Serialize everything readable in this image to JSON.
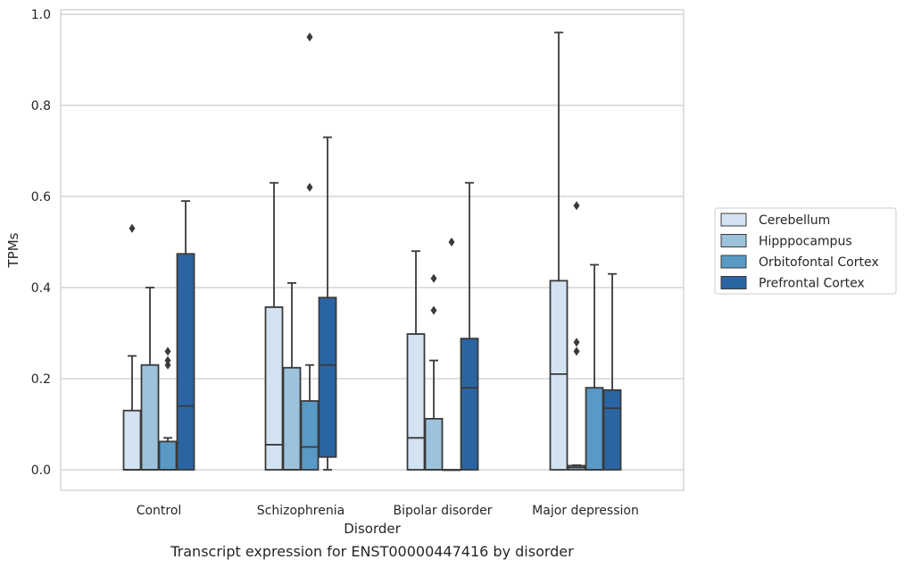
{
  "chart_data": {
    "type": "box",
    "xlabel": "Disorder",
    "ylabel": "TPMs",
    "caption": "Transcript expression for ENST00000447416 by disorder",
    "ylim": [
      -0.045,
      1.01
    ],
    "yticks": [
      0.0,
      0.2,
      0.4,
      0.6,
      0.8,
      1.0
    ],
    "ytick_labels": [
      "0.0",
      "0.2",
      "0.4",
      "0.6",
      "0.8",
      "1.0"
    ],
    "grid": true,
    "legend_position": "right",
    "categories": [
      "Control",
      "Schizophrenia",
      "Bipolar disorder",
      "Major depression"
    ],
    "series": [
      {
        "name": "Cerebellum",
        "color": "#d3e3f1",
        "boxes": [
          {
            "q1": 0.0,
            "median": 0.0,
            "q3": 0.13,
            "whisker_low": 0.0,
            "whisker_high": 0.25,
            "outliers": [
              0.53
            ]
          },
          {
            "q1": 0.0,
            "median": 0.055,
            "q3": 0.357,
            "whisker_low": 0.0,
            "whisker_high": 0.63,
            "outliers": []
          },
          {
            "q1": 0.0,
            "median": 0.07,
            "q3": 0.298,
            "whisker_low": 0.0,
            "whisker_high": 0.48,
            "outliers": []
          },
          {
            "q1": 0.0,
            "median": 0.21,
            "q3": 0.415,
            "whisker_low": 0.0,
            "whisker_high": 0.96,
            "outliers": []
          }
        ]
      },
      {
        "name": "Hipppocampus",
        "color": "#9dc3dc",
        "boxes": [
          {
            "q1": 0.0,
            "median": 0.0,
            "q3": 0.23,
            "whisker_low": 0.0,
            "whisker_high": 0.4,
            "outliers": []
          },
          {
            "q1": 0.0,
            "median": 0.0,
            "q3": 0.224,
            "whisker_low": 0.0,
            "whisker_high": 0.41,
            "outliers": []
          },
          {
            "q1": 0.0,
            "median": 0.0,
            "q3": 0.112,
            "whisker_low": 0.0,
            "whisker_high": 0.24,
            "outliers": [
              0.35,
              0.42
            ]
          },
          {
            "q1": 0.0,
            "median": 0.005,
            "q3": 0.009,
            "whisker_low": 0.0,
            "whisker_high": 0.01,
            "outliers": [
              0.26,
              0.28,
              0.58
            ]
          }
        ]
      },
      {
        "name": "Orbitofontal Cortex",
        "color": "#5899c6",
        "boxes": [
          {
            "q1": 0.0,
            "median": 0.0,
            "q3": 0.062,
            "whisker_low": 0.0,
            "whisker_high": 0.07,
            "outliers": [
              0.23,
              0.24,
              0.26
            ]
          },
          {
            "q1": 0.0,
            "median": 0.05,
            "q3": 0.151,
            "whisker_low": 0.0,
            "whisker_high": 0.23,
            "outliers": [
              0.62,
              0.95
            ]
          },
          {
            "q1": 0.0,
            "median": 0.0,
            "q3": 0.0,
            "whisker_low": 0.0,
            "whisker_high": 0.0,
            "outliers": [
              0.5
            ]
          },
          {
            "q1": 0.0,
            "median": 0.0,
            "q3": 0.18,
            "whisker_low": 0.0,
            "whisker_high": 0.45,
            "outliers": []
          }
        ]
      },
      {
        "name": "Prefrontal Cortex",
        "color": "#2a65a3",
        "boxes": [
          {
            "q1": 0.0,
            "median": 0.14,
            "q3": 0.474,
            "whisker_low": 0.0,
            "whisker_high": 0.59,
            "outliers": []
          },
          {
            "q1": 0.028,
            "median": 0.23,
            "q3": 0.378,
            "whisker_low": 0.0,
            "whisker_high": 0.73,
            "outliers": []
          },
          {
            "q1": 0.0,
            "median": 0.18,
            "q3": 0.288,
            "whisker_low": 0.0,
            "whisker_high": 0.63,
            "outliers": []
          },
          {
            "q1": 0.0,
            "median": 0.135,
            "q3": 0.175,
            "whisker_low": 0.0,
            "whisker_high": 0.43,
            "outliers": []
          }
        ]
      }
    ]
  }
}
